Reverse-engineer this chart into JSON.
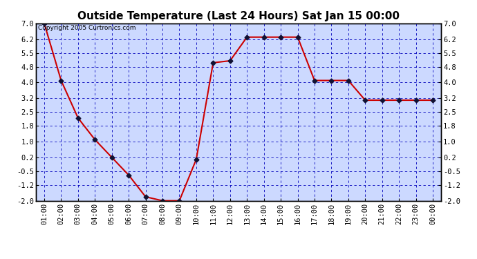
{
  "title": "Outside Temperature (Last 24 Hours) Sat Jan 15 00:00",
  "copyright": "Copyright 2005 Curtronics.com",
  "x_labels": [
    "01:00",
    "02:00",
    "03:00",
    "04:00",
    "05:00",
    "06:00",
    "07:00",
    "08:00",
    "09:00",
    "10:00",
    "11:00",
    "12:00",
    "13:00",
    "14:00",
    "15:00",
    "16:00",
    "17:00",
    "18:00",
    "19:00",
    "20:00",
    "21:00",
    "22:00",
    "23:00",
    "00:00"
  ],
  "x_values": [
    1,
    2,
    3,
    4,
    5,
    6,
    7,
    8,
    9,
    10,
    11,
    12,
    13,
    14,
    15,
    16,
    17,
    18,
    19,
    20,
    21,
    22,
    23,
    24
  ],
  "y_values": [
    7.0,
    4.1,
    2.2,
    1.1,
    0.2,
    -0.7,
    -1.8,
    -2.0,
    -2.0,
    0.1,
    5.0,
    5.1,
    6.3,
    6.3,
    6.3,
    6.3,
    4.1,
    4.1,
    4.1,
    3.1,
    3.1,
    3.1,
    3.1,
    3.1
  ],
  "ylim_min": -2.0,
  "ylim_max": 7.0,
  "yticks": [
    -2.0,
    -1.2,
    -0.5,
    0.2,
    1.0,
    1.8,
    2.5,
    3.2,
    4.0,
    4.8,
    5.5,
    6.2,
    7.0
  ],
  "ytick_labels": [
    "-2.0",
    "-1.2",
    "-0.5",
    "0.2",
    "1.0",
    "1.8",
    "2.5",
    "3.2",
    "4.0",
    "4.8",
    "5.5",
    "6.2",
    "7.0"
  ],
  "line_color": "#cc0000",
  "marker_color": "#111133",
  "bg_color": "#ccd9ff",
  "grid_color": "#0000bb",
  "border_color": "#000000",
  "fig_bg_color": "#ffffff",
  "title_fontsize": 11,
  "copyright_fontsize": 6.5,
  "tick_fontsize": 7.5
}
